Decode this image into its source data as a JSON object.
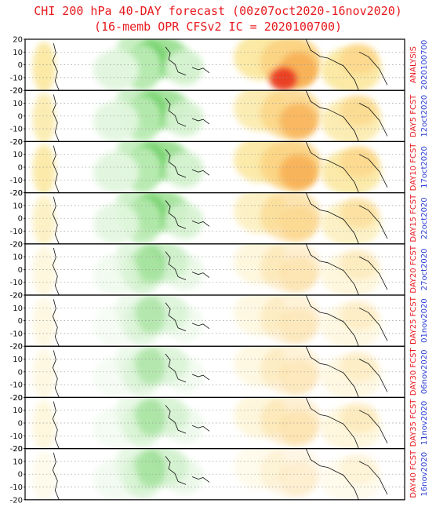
{
  "title_line1": "CHI 200 hPa 40-DAY forecast (00z07oct2020-16nov2020)",
  "title_line2": "(16-memb OPR CFSv2 IC = 2020100700)",
  "colors": {
    "title": "#e8191e",
    "label_red": "#e8191e",
    "label_blue": "#2b3fd6"
  },
  "chart_data": {
    "type": "heatmap",
    "variable": "CHI 200 hPa",
    "ylim": [
      -20,
      20
    ],
    "yticks": [
      20,
      10,
      0,
      -10,
      -20
    ],
    "panels": [
      {
        "label": "ANALYSIS",
        "date": "2020100700",
        "intensity": {
          "green": 0.9,
          "orange": 1.0
        }
      },
      {
        "label": "DAY5 FCST",
        "date": "12oct2020",
        "intensity": {
          "green": 0.85,
          "orange": 0.8
        }
      },
      {
        "label": "DAY10 FCST",
        "date": "17oct2020",
        "intensity": {
          "green": 0.9,
          "orange": 0.9
        }
      },
      {
        "label": "DAY15 FCST",
        "date": "22oct2020",
        "intensity": {
          "green": 0.8,
          "orange": 0.6
        }
      },
      {
        "label": "DAY20 FCST",
        "date": "27oct2020",
        "intensity": {
          "green": 0.45,
          "orange": 0.35
        }
      },
      {
        "label": "DAY25 FCST",
        "date": "01nov2020",
        "intensity": {
          "green": 0.3,
          "orange": 0.3
        }
      },
      {
        "label": "DAY30 FCST",
        "date": "06nov2020",
        "intensity": {
          "green": 0.3,
          "orange": 0.3
        }
      },
      {
        "label": "DAY35 FCST",
        "date": "11nov2020",
        "intensity": {
          "green": 0.35,
          "orange": 0.35
        }
      },
      {
        "label": "DAY40 FCST",
        "date": "16nov2020",
        "intensity": {
          "green": 0.4,
          "orange": 0.2
        }
      }
    ]
  }
}
